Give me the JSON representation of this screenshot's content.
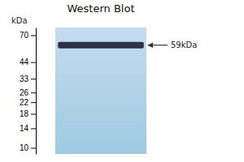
{
  "chart_data": {
    "type": "blot",
    "title": "Western Blot",
    "ylabel": "kDa",
    "values": [
      59
    ],
    "value_labels": [
      "59kDa"
    ],
    "data_labels": true,
    "color": "#1a1a2e",
    "log": "y",
    "ylim": [
      9,
      80
    ],
    "yticks": [
      10,
      14,
      18,
      22,
      26,
      33,
      44,
      70
    ],
    "tick_labels": "y"
  }
}
